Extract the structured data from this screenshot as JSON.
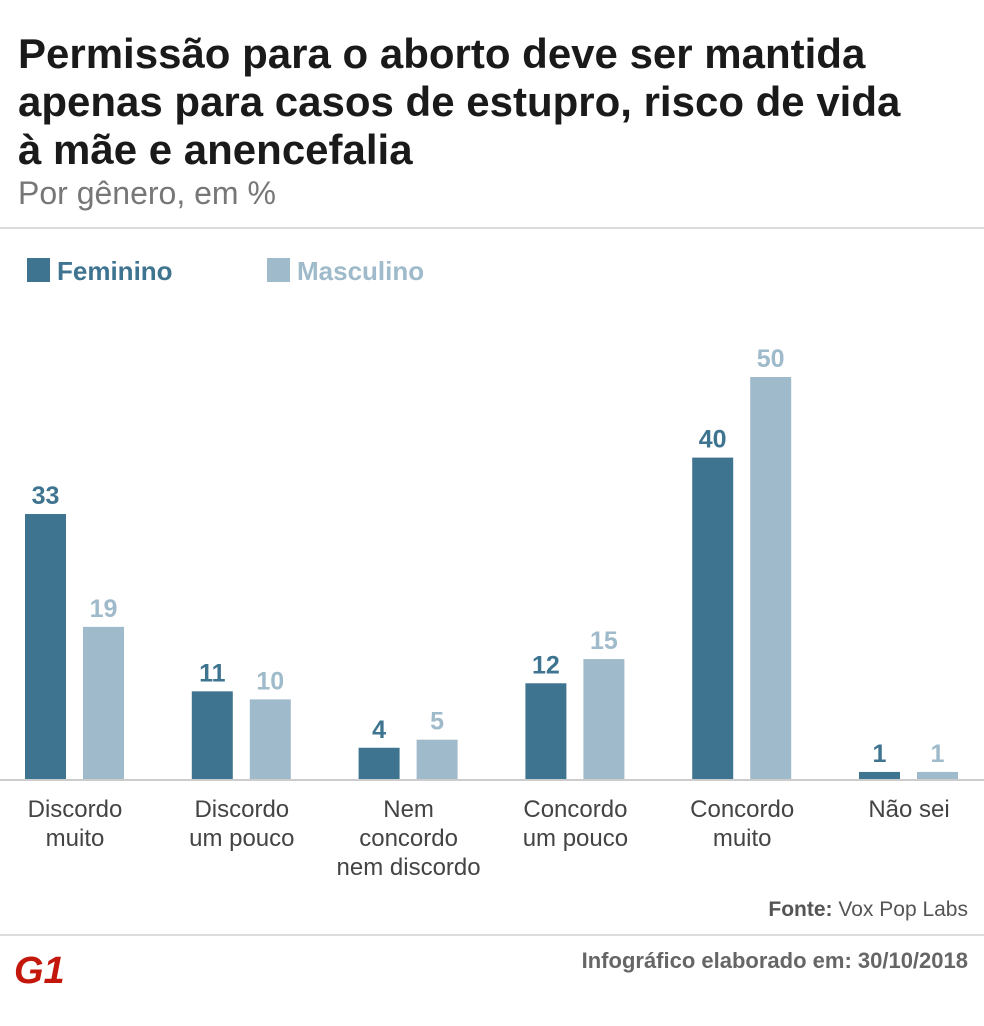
{
  "chart_data": {
    "type": "bar",
    "title": "Permissão para o aborto deve ser mantida apenas para casos de estupro, risco de vida à mãe e anencefalia",
    "subtitle": "Por gênero, em %",
    "categories": [
      "Discordo\nmuito",
      "Discordo\num pouco",
      "Nem\nconcordo\nnem discordo",
      "Concordo\num pouco",
      "Concordo\nmuito",
      "Não sei"
    ],
    "series": [
      {
        "name": "Feminino",
        "color": "#3f7490",
        "values": [
          33,
          11,
          4,
          12,
          40,
          1
        ]
      },
      {
        "name": "Masculino",
        "color": "#9fbaca",
        "values": [
          19,
          10,
          5,
          15,
          50,
          1
        ]
      }
    ],
    "ylim": [
      0,
      50
    ],
    "source_label": "Fonte:",
    "source": "Vox Pop Labs",
    "credit": "Infográfico elaborado em: 30/10/2018",
    "logo": "G1"
  }
}
